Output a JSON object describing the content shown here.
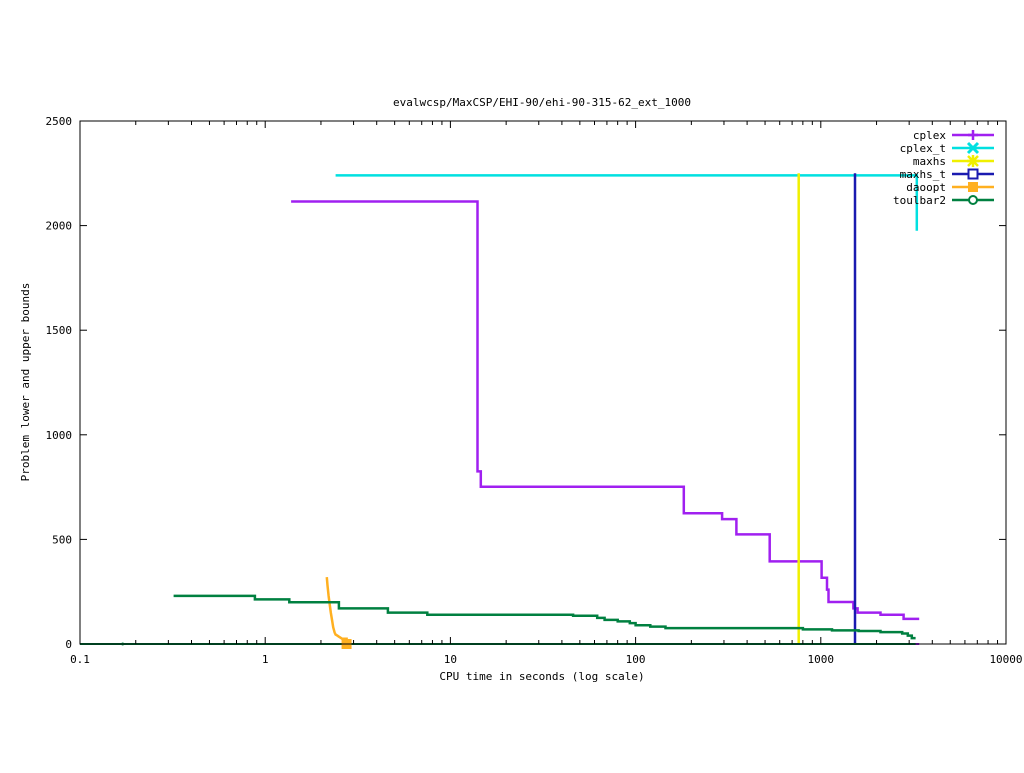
{
  "chart_data": {
    "type": "line",
    "title": "evalwcsp/MaxCSP/EHI-90/ehi-90-315-62_ext_1000",
    "xlabel": "CPU time in seconds (log scale)",
    "ylabel": "Problem lower and upper bounds",
    "xscale": "log",
    "xlim": [
      0.1,
      10000
    ],
    "ylim": [
      0,
      2500
    ],
    "grid": false,
    "legend_position": "top-right",
    "x_ticks": [
      {
        "value": 0.1,
        "label": "0.1"
      },
      {
        "value": 1,
        "label": "1"
      },
      {
        "value": 10,
        "label": "10"
      },
      {
        "value": 100,
        "label": "100"
      },
      {
        "value": 1000,
        "label": "1000"
      },
      {
        "value": 10000,
        "label": "10000"
      }
    ],
    "y_ticks": [
      {
        "value": 0,
        "label": "0"
      },
      {
        "value": 500,
        "label": "500"
      },
      {
        "value": 1000,
        "label": "1000"
      },
      {
        "value": 1500,
        "label": "1500"
      },
      {
        "value": 2000,
        "label": "2000"
      },
      {
        "value": 2500,
        "label": "2500"
      }
    ],
    "series": [
      {
        "name": "cplex",
        "color": "#a020f0",
        "marker": "plus",
        "points": [
          [
            1.38,
            2115
          ],
          [
            14.0,
            2115
          ],
          [
            14.0,
            825
          ],
          [
            14.6,
            825
          ],
          [
            14.6,
            752
          ],
          [
            182,
            752
          ],
          [
            182,
            625
          ],
          [
            293,
            625
          ],
          [
            293,
            597
          ],
          [
            350,
            597
          ],
          [
            350,
            524
          ],
          [
            530,
            524
          ],
          [
            530,
            395
          ],
          [
            1010,
            395
          ],
          [
            1010,
            317
          ],
          [
            1080,
            317
          ],
          [
            1080,
            260
          ],
          [
            1100,
            260
          ],
          [
            1100,
            201
          ],
          [
            1500,
            201
          ],
          [
            1500,
            170
          ],
          [
            1580,
            170
          ],
          [
            1580,
            150
          ],
          [
            2100,
            150
          ],
          [
            2100,
            140
          ],
          [
            2800,
            140
          ],
          [
            2800,
            120
          ],
          [
            3400,
            120
          ]
        ],
        "lower_points": [
          [
            470,
            0
          ],
          [
            3400,
            0
          ]
        ]
      },
      {
        "name": "cplex_t",
        "color": "#00e0e0",
        "marker": "cross",
        "points": [
          [
            2.4,
            2240
          ],
          [
            3300,
            2240
          ],
          [
            3300,
            1975
          ]
        ]
      },
      {
        "name": "maxhs",
        "color": "#f0f000",
        "marker": "star",
        "points": [
          [
            760,
            2250
          ],
          [
            760,
            0
          ]
        ],
        "lower_points": [
          [
            0.1,
            0
          ],
          [
            760,
            0
          ]
        ]
      },
      {
        "name": "maxhs_t",
        "color": "#1a1ab0",
        "marker": "square",
        "points": [
          [
            1530,
            2250
          ],
          [
            1530,
            0
          ]
        ],
        "lower_points": [
          [
            0.1,
            0
          ],
          [
            1530,
            0
          ]
        ]
      },
      {
        "name": "daoopt",
        "color": "#ffb020",
        "marker": "filled-square",
        "points": [
          [
            2.15,
            320
          ],
          [
            2.17,
            280
          ],
          [
            2.2,
            230
          ],
          [
            2.23,
            190
          ],
          [
            2.26,
            150
          ],
          [
            2.3,
            110
          ],
          [
            2.33,
            80
          ],
          [
            2.37,
            55
          ],
          [
            2.4,
            45
          ],
          [
            2.45,
            40
          ],
          [
            2.5,
            35
          ],
          [
            2.55,
            30
          ],
          [
            2.6,
            25
          ],
          [
            2.75,
            25
          ],
          [
            2.75,
            0
          ]
        ],
        "lower_points": [
          [
            0.1,
            0
          ],
          [
            2.75,
            0
          ]
        ]
      },
      {
        "name": "toulbar2",
        "color": "#008040",
        "marker": "circle",
        "points": [
          [
            0.32,
            230
          ],
          [
            0.88,
            230
          ],
          [
            0.88,
            213
          ],
          [
            1.35,
            213
          ],
          [
            1.35,
            200
          ],
          [
            2.5,
            200
          ],
          [
            2.5,
            170
          ],
          [
            4.6,
            170
          ],
          [
            4.6,
            150
          ],
          [
            7.5,
            150
          ],
          [
            7.5,
            140
          ],
          [
            46,
            140
          ],
          [
            46,
            135
          ],
          [
            62,
            135
          ],
          [
            62,
            125
          ],
          [
            68,
            125
          ],
          [
            68,
            115
          ],
          [
            80,
            115
          ],
          [
            80,
            108
          ],
          [
            93,
            108
          ],
          [
            93,
            100
          ],
          [
            100,
            100
          ],
          [
            100,
            90
          ],
          [
            120,
            90
          ],
          [
            120,
            83
          ],
          [
            145,
            83
          ],
          [
            145,
            76
          ],
          [
            800,
            76
          ],
          [
            800,
            70
          ],
          [
            1150,
            70
          ],
          [
            1150,
            65
          ],
          [
            1600,
            65
          ],
          [
            1600,
            62
          ],
          [
            2100,
            62
          ],
          [
            2100,
            57
          ],
          [
            2750,
            57
          ],
          [
            2750,
            50
          ],
          [
            2950,
            50
          ],
          [
            2950,
            40
          ],
          [
            3100,
            40
          ],
          [
            3100,
            28
          ],
          [
            3250,
            28
          ]
        ],
        "lower_points": [
          [
            0.1,
            0
          ],
          [
            3250,
            0
          ]
        ]
      }
    ]
  }
}
